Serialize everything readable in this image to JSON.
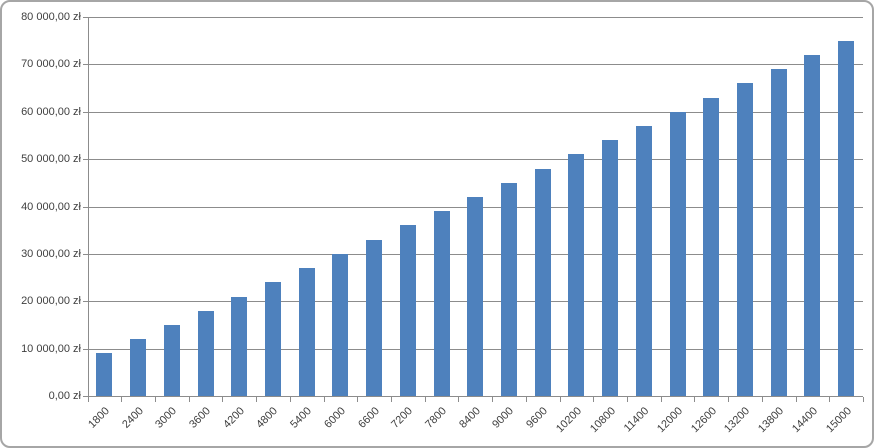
{
  "chart_data": {
    "type": "bar",
    "title": "",
    "xlabel": "",
    "ylabel": "",
    "categories": [
      "1800",
      "2400",
      "3000",
      "3600",
      "4200",
      "4800",
      "5400",
      "6000",
      "6600",
      "7200",
      "7800",
      "8400",
      "9000",
      "9600",
      "10200",
      "10800",
      "11400",
      "12000",
      "12600",
      "13200",
      "13800",
      "14400",
      "15000"
    ],
    "values": [
      9000,
      12000,
      15000,
      18000,
      21000,
      24000,
      27000,
      30000,
      33000,
      36000,
      39000,
      42000,
      45000,
      48000,
      51000,
      54000,
      57000,
      60000,
      63000,
      66000,
      69000,
      72000,
      75000
    ],
    "ylim": [
      0,
      80000
    ],
    "ytick_step": 10000,
    "ytick_labels": [
      "0,00 zł",
      "10 000,00 zł",
      "20 000,00 zł",
      "30 000,00 zł",
      "40 000,00 zł",
      "50 000,00 zł",
      "60 000,00 zł",
      "70 000,00 zł",
      "80 000,00 zł"
    ],
    "grid": true,
    "legend": false,
    "x_label_rotation_deg": -45,
    "colors": {
      "bar": "#4e81bd",
      "gridline": "#8c8c8c",
      "axis": "#8c8c8c",
      "text": "#3f3f3f",
      "frame_border": "#a6a6a6",
      "background": "#ffffff"
    }
  }
}
